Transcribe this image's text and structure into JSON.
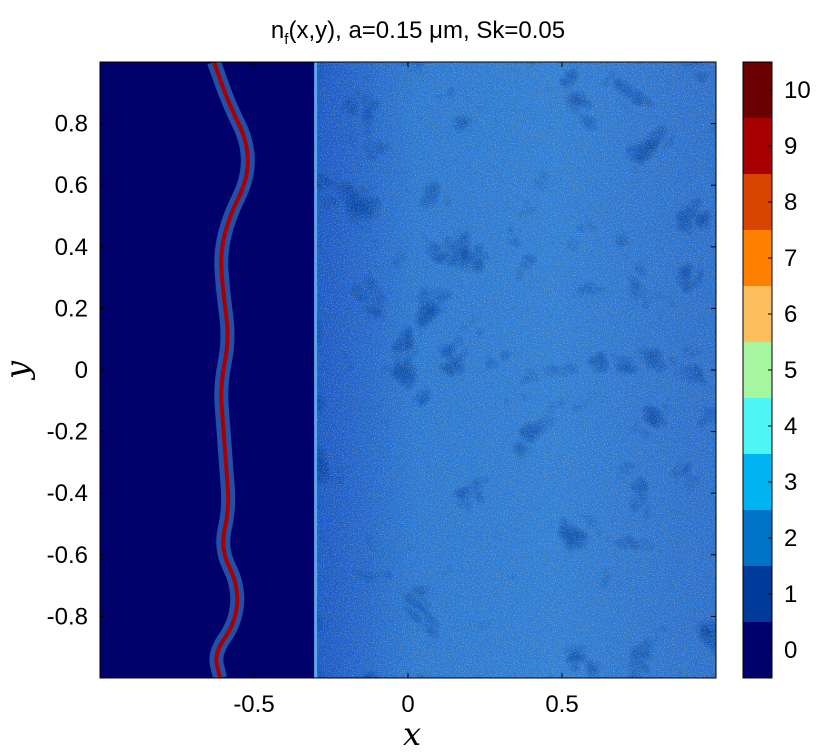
{
  "chart_data": {
    "type": "heatmap",
    "title": "n",
    "title_subscript": "f",
    "title_rest": "(x,y), a=0.15 μm, Sk=0.05",
    "xlabel": "x",
    "ylabel": "y",
    "xlim": [
      -1,
      1
    ],
    "ylim": [
      -1,
      1
    ],
    "xticks": [
      {
        "value": -0.5,
        "label": "-0.5"
      },
      {
        "value": 0,
        "label": "0"
      },
      {
        "value": 0.5,
        "label": "0.5"
      }
    ],
    "yticks": [
      {
        "value": 0.8,
        "label": "0.8"
      },
      {
        "value": 0.6,
        "label": "0.6"
      },
      {
        "value": 0.4,
        "label": "0.4"
      },
      {
        "value": 0.2,
        "label": "0.2"
      },
      {
        "value": 0,
        "label": "0"
      },
      {
        "value": -0.2,
        "label": "-0.2"
      },
      {
        "value": -0.4,
        "label": "-0.4"
      },
      {
        "value": -0.6,
        "label": "-0.6"
      },
      {
        "value": -0.8,
        "label": "-0.8"
      }
    ],
    "colorbar": {
      "levels": [
        {
          "label": "0",
          "color": "#00006b"
        },
        {
          "label": "1",
          "color": "#003a9a"
        },
        {
          "label": "2",
          "color": "#0073c8"
        },
        {
          "label": "3",
          "color": "#00b4f4"
        },
        {
          "label": "4",
          "color": "#4ef5f5"
        },
        {
          "label": "5",
          "color": "#a6f5a0"
        },
        {
          "label": "6",
          "color": "#fdbf5e"
        },
        {
          "label": "7",
          "color": "#fe8000"
        },
        {
          "label": "8",
          "color": "#d74500"
        },
        {
          "label": "9",
          "color": "#a80000"
        },
        {
          "label": "10",
          "color": "#6b0000"
        }
      ]
    },
    "regions": {
      "void_x_max": -0.3,
      "front_curve": [
        [
          -0.61,
          -1.0
        ],
        [
          -0.63,
          -0.92
        ],
        [
          -0.56,
          -0.82
        ],
        [
          -0.55,
          -0.7
        ],
        [
          -0.61,
          -0.58
        ],
        [
          -0.58,
          -0.45
        ],
        [
          -0.59,
          -0.32
        ],
        [
          -0.6,
          -0.18
        ],
        [
          -0.61,
          -0.05
        ],
        [
          -0.58,
          0.1
        ],
        [
          -0.6,
          0.25
        ],
        [
          -0.61,
          0.38
        ],
        [
          -0.58,
          0.5
        ],
        [
          -0.52,
          0.62
        ],
        [
          -0.52,
          0.74
        ],
        [
          -0.58,
          0.86
        ],
        [
          -0.63,
          1.0
        ]
      ]
    }
  }
}
